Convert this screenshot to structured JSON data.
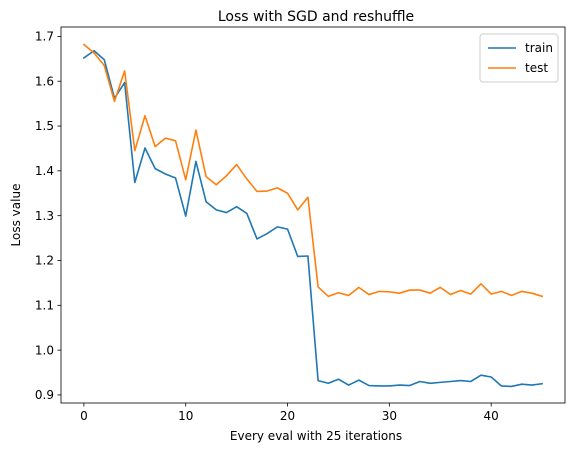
{
  "chart_data": {
    "type": "line",
    "title": "Loss with SGD and reshuffle",
    "xlabel": "Every eval with 25 iterations",
    "ylabel": "Loss value",
    "xlim": [
      -2.25,
      47.25
    ],
    "ylim": [
      0.882,
      1.721
    ],
    "xticks": [
      0,
      10,
      20,
      30,
      40
    ],
    "xtick_labels": [
      "0",
      "10",
      "20",
      "30",
      "40"
    ],
    "yticks": [
      0.9,
      1.0,
      1.1,
      1.2,
      1.3,
      1.4,
      1.5,
      1.6,
      1.7
    ],
    "ytick_labels": [
      "0.9",
      "1.0",
      "1.1",
      "1.2",
      "1.3",
      "1.4",
      "1.5",
      "1.6",
      "1.7"
    ],
    "grid": false,
    "legend_position": "upper right",
    "x": [
      0,
      1,
      2,
      3,
      4,
      5,
      6,
      7,
      8,
      9,
      10,
      11,
      12,
      13,
      14,
      15,
      16,
      17,
      18,
      19,
      20,
      21,
      22,
      23,
      24,
      25,
      26,
      27,
      28,
      29,
      30,
      31,
      32,
      33,
      34,
      35,
      36,
      37,
      38,
      39,
      40,
      41,
      42,
      43,
      44,
      45
    ],
    "series": [
      {
        "name": "train",
        "color": "#1f77b4",
        "values": [
          1.652,
          1.668,
          1.648,
          1.562,
          1.597,
          1.374,
          1.451,
          1.405,
          1.393,
          1.384,
          1.299,
          1.421,
          1.331,
          1.313,
          1.307,
          1.32,
          1.305,
          1.248,
          1.26,
          1.275,
          1.27,
          1.209,
          1.21,
          0.932,
          0.926,
          0.935,
          0.922,
          0.933,
          0.921,
          0.92,
          0.92,
          0.922,
          0.921,
          0.93,
          0.926,
          0.928,
          0.93,
          0.932,
          0.93,
          0.944,
          0.94,
          0.92,
          0.919,
          0.924,
          0.922,
          0.925
        ]
      },
      {
        "name": "test",
        "color": "#ff7f0e",
        "values": [
          1.682,
          1.663,
          1.635,
          1.555,
          1.623,
          1.445,
          1.523,
          1.454,
          1.473,
          1.467,
          1.38,
          1.491,
          1.387,
          1.369,
          1.389,
          1.414,
          1.382,
          1.354,
          1.355,
          1.362,
          1.35,
          1.313,
          1.341,
          1.141,
          1.12,
          1.128,
          1.122,
          1.14,
          1.124,
          1.131,
          1.13,
          1.127,
          1.134,
          1.134,
          1.127,
          1.14,
          1.124,
          1.133,
          1.125,
          1.148,
          1.125,
          1.131,
          1.122,
          1.131,
          1.127,
          1.12
        ]
      }
    ]
  }
}
